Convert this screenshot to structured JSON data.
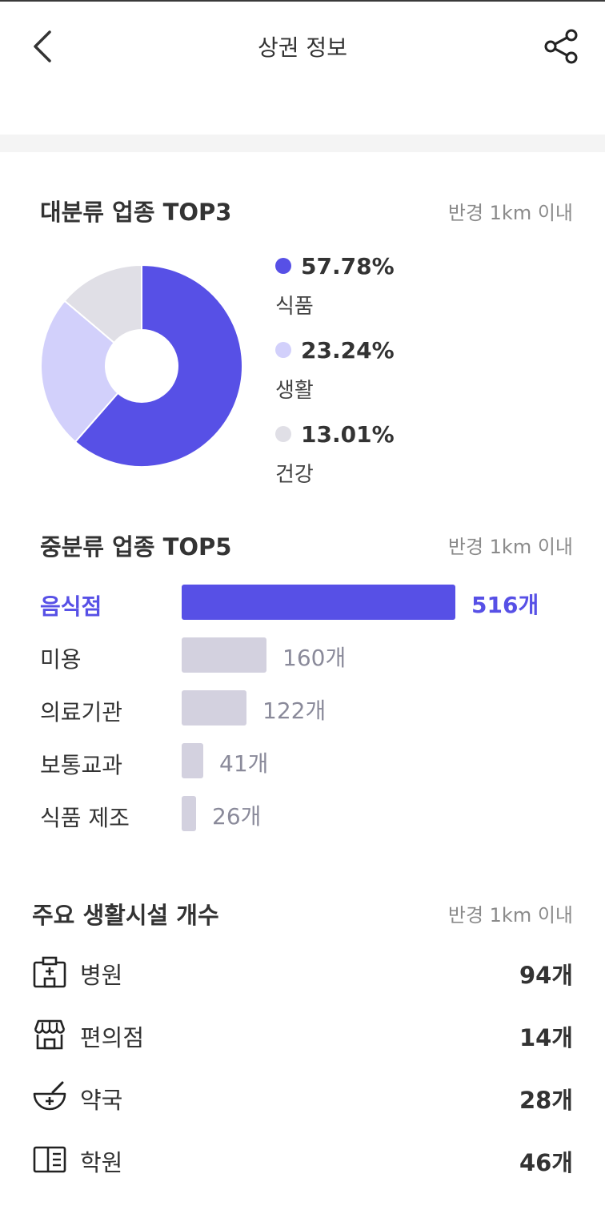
{
  "header": {
    "title": "상권 정보"
  },
  "top3": {
    "title": "대분류 업종 TOP3",
    "radius": "반경 1km 이내",
    "chart_data": {
      "type": "pie",
      "categories": [
        "식품",
        "생활",
        "건강"
      ],
      "values": [
        57.78,
        23.24,
        13.01
      ],
      "colors": [
        "#5750e6",
        "#d2d0fb",
        "#e0dfe6"
      ]
    },
    "legend": [
      {
        "pct": "57.78%",
        "name": "식품",
        "color": "#5750e6"
      },
      {
        "pct": "23.24%",
        "name": "생활",
        "color": "#d2d0fb"
      },
      {
        "pct": "13.01%",
        "name": "건강",
        "color": "#e0dfe6"
      }
    ]
  },
  "top5": {
    "title": "중분류 업종 TOP5",
    "radius": "반경 1km 이내",
    "chart_data": {
      "type": "bar",
      "categories": [
        "음식점",
        "미용",
        "의료기관",
        "보통교과",
        "식품 제조"
      ],
      "values": [
        516,
        160,
        122,
        41,
        26
      ],
      "highlight_color": "#5750e6",
      "bar_color": "#d3d1df"
    },
    "labels": [
      "516개",
      "160개",
      "122개",
      "41개",
      "26개"
    ]
  },
  "facilities": {
    "title": "주요 생활시설 개수",
    "radius": "반경 1km 이내",
    "items": [
      {
        "name": "병원",
        "count": "94개",
        "icon": "hospital-icon"
      },
      {
        "name": "편의점",
        "count": "14개",
        "icon": "store-icon"
      },
      {
        "name": "약국",
        "count": "28개",
        "icon": "pharmacy-icon"
      },
      {
        "name": "학원",
        "count": "46개",
        "icon": "book-icon"
      }
    ]
  }
}
